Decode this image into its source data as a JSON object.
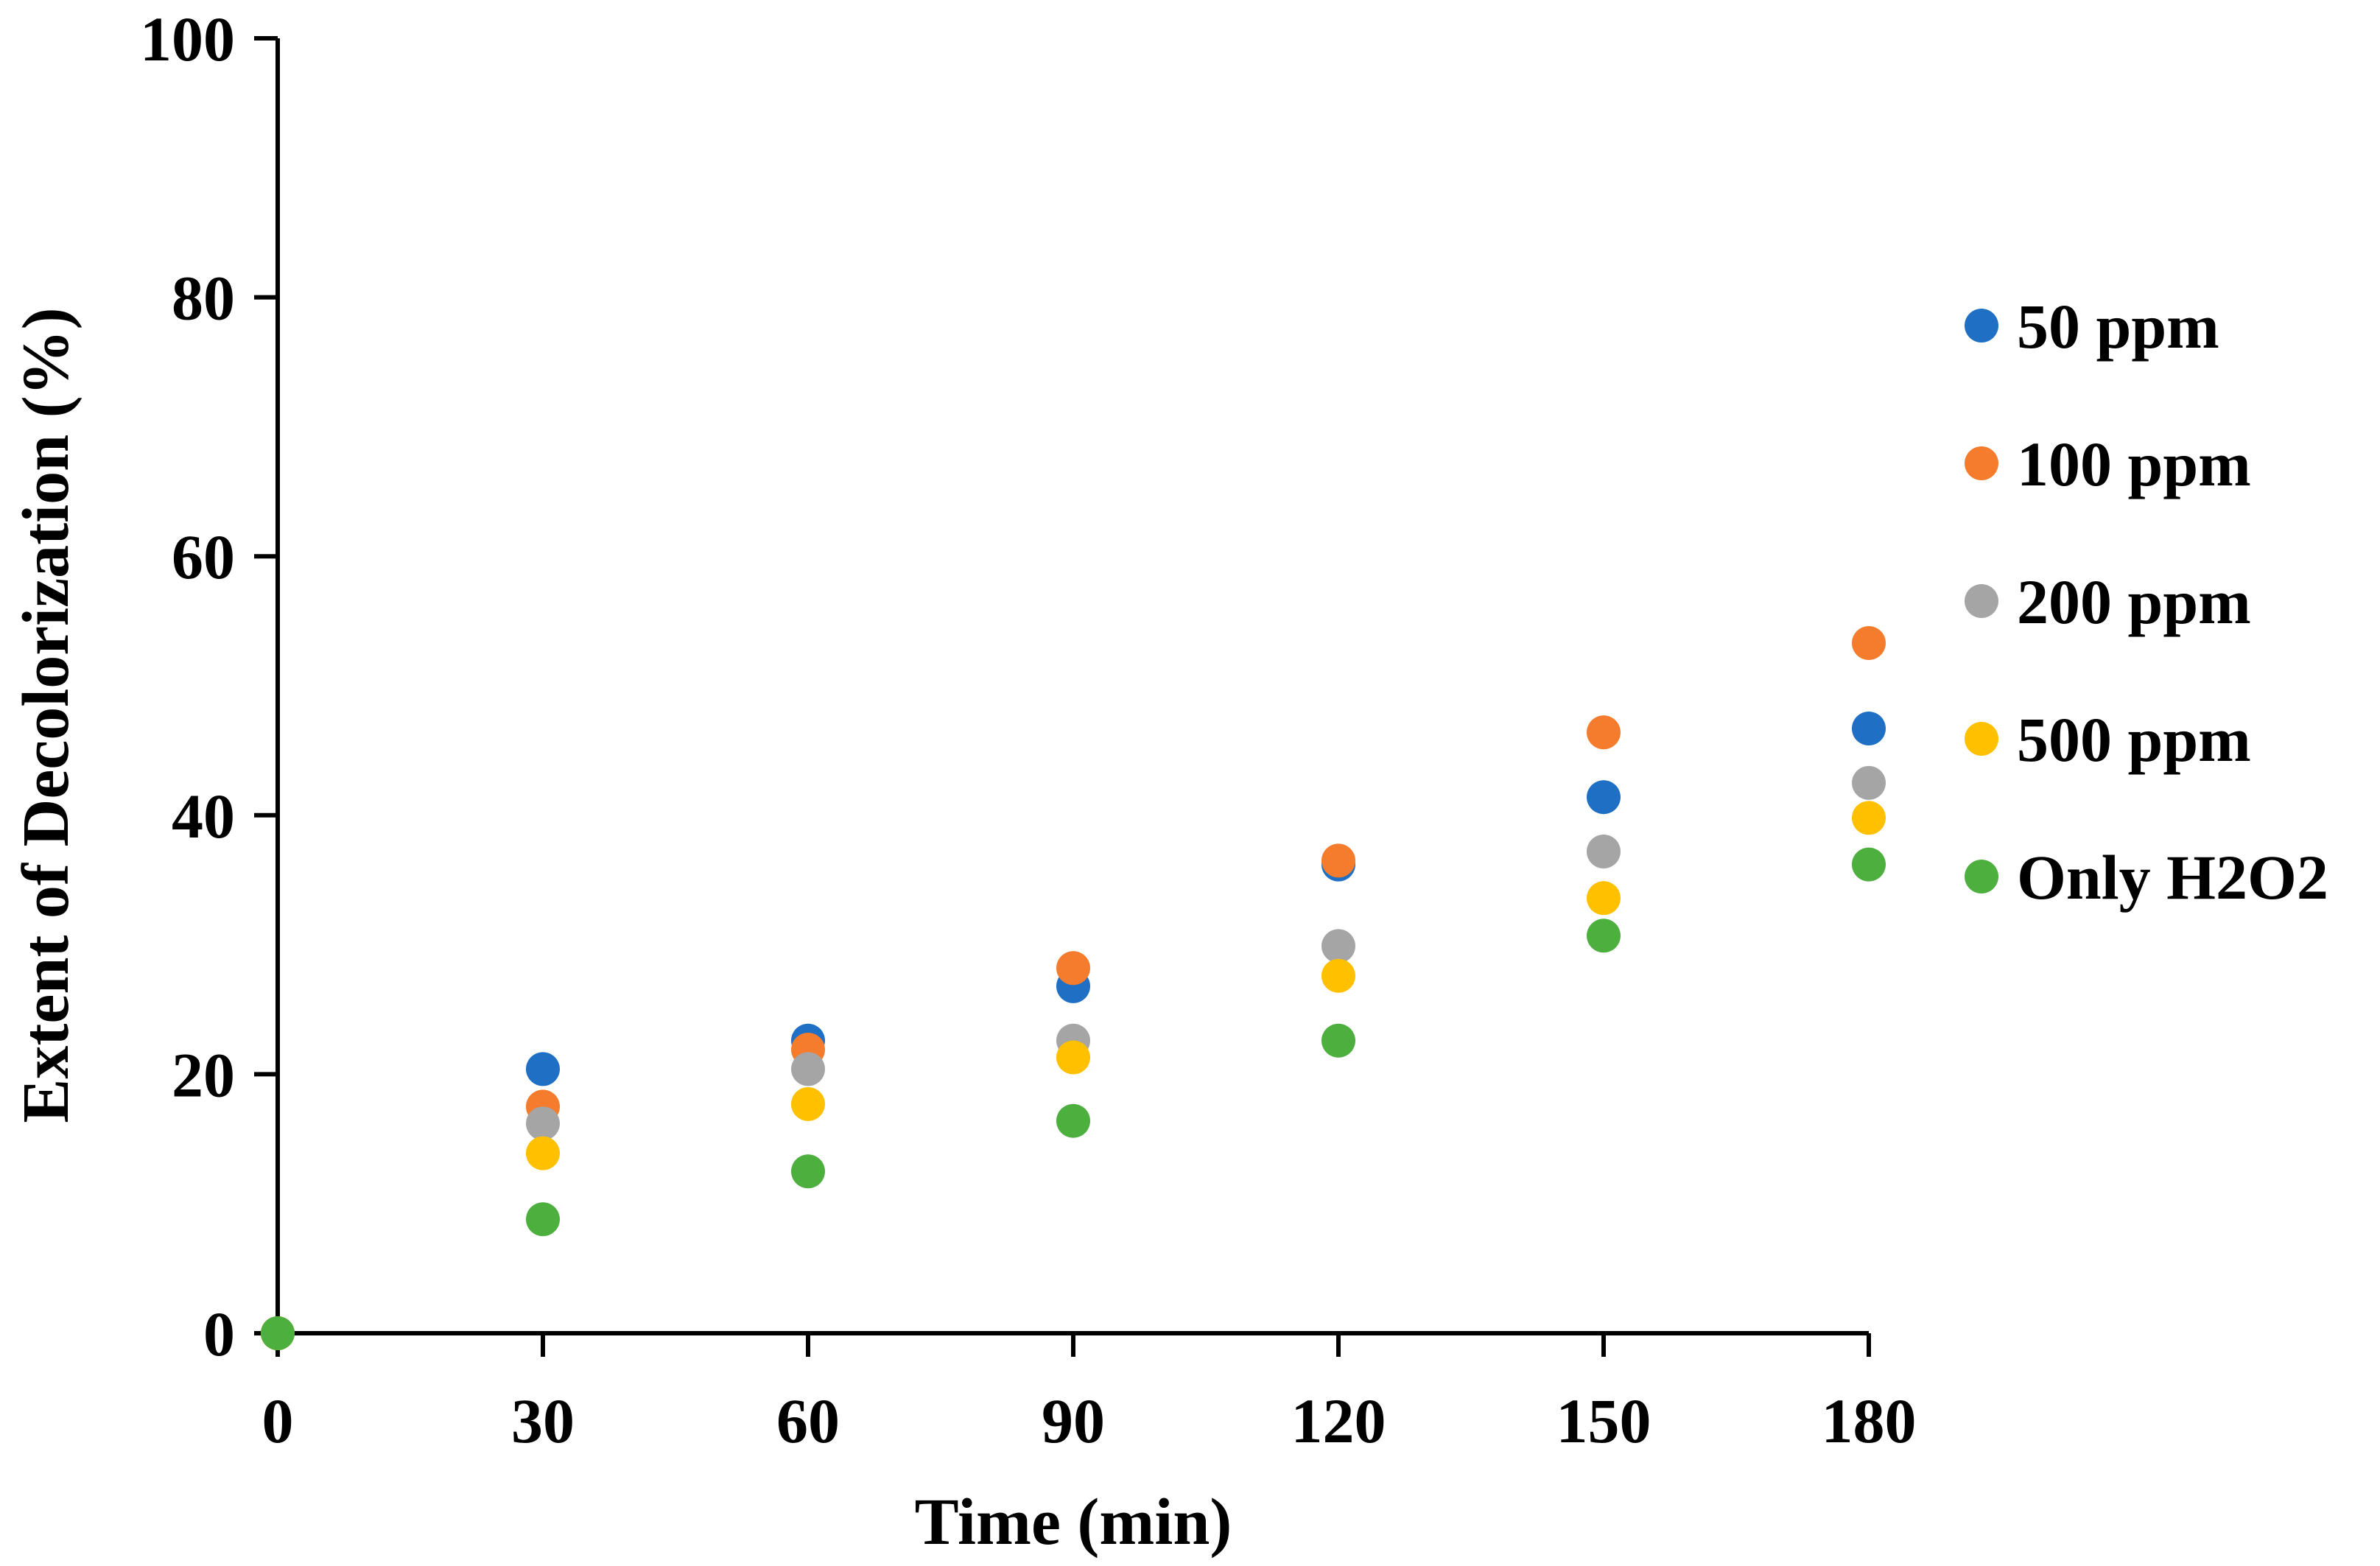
{
  "chart_data": {
    "type": "scatter",
    "title": "",
    "xlabel": "Time (min)",
    "ylabel": "Extent of Decolorization (%)",
    "x": [
      0,
      30,
      60,
      90,
      120,
      150,
      180
    ],
    "xlim": [
      0,
      180
    ],
    "ylim": [
      0,
      100
    ],
    "xticks": [
      "0",
      "30",
      "60",
      "90",
      "120",
      "150",
      "180"
    ],
    "yticks": [
      "0",
      "20",
      "40",
      "60",
      "80",
      "100"
    ],
    "grid": false,
    "legend_position": "right",
    "series": [
      {
        "name": "50 ppm",
        "color": "#1F6FC4",
        "values": [
          0,
          20.4,
          22.6,
          26.8,
          36.2,
          41.4,
          46.7
        ]
      },
      {
        "name": "100 ppm",
        "color": "#F47C2C",
        "values": [
          0,
          17.5,
          21.9,
          28.2,
          36.5,
          46.4,
          53.3
        ]
      },
      {
        "name": "200 ppm",
        "color": "#A5A5A5",
        "values": [
          0,
          16.2,
          20.4,
          22.6,
          29.9,
          37.2,
          42.5
        ]
      },
      {
        "name": "500 ppm",
        "color": "#FFC000",
        "values": [
          0,
          13.9,
          17.7,
          21.3,
          27.6,
          33.6,
          39.8
        ]
      },
      {
        "name": "Only H2O2",
        "color": "#4CAF3E",
        "values": [
          0,
          8.8,
          12.5,
          16.4,
          22.6,
          30.7,
          36.2
        ]
      }
    ]
  }
}
